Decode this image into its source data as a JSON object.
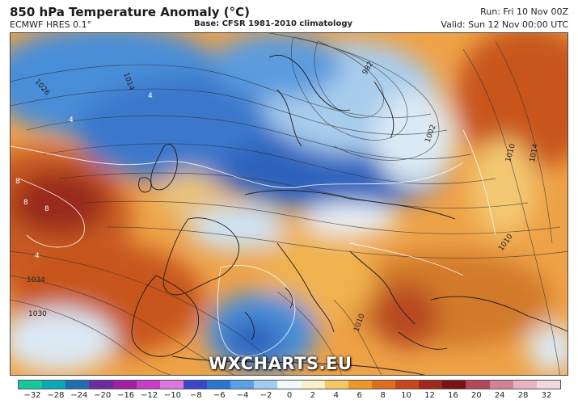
{
  "header": {
    "title": "850 hPa Temperature Anomaly (°C)",
    "model": "ECMWF HRES 0.1°",
    "base": "Base: CFSR 1981-2010 climatology",
    "run": "Run: Fri 10 Nov 00Z",
    "valid": "Valid: Sun 12 Nov 00:00 UTC"
  },
  "watermark": "WXCHARTS.EU",
  "isobar_labels": [
    "1026",
    "1014",
    "982",
    "1002",
    "1010",
    "1014",
    "1034",
    "1030",
    "1010",
    "1010"
  ],
  "anomaly_labels": [
    "8",
    "8",
    "8",
    "4",
    "4",
    "4"
  ],
  "colorbar": {
    "ticks": [
      "−32",
      "−28",
      "−24",
      "−20",
      "−16",
      "−12",
      "−10",
      "−8",
      "−6",
      "−4",
      "−2",
      "0",
      "2",
      "4",
      "6",
      "8",
      "10",
      "12",
      "16",
      "20",
      "24",
      "28",
      "32"
    ],
    "colors": [
      "#14c8a0",
      "#0aa8b4",
      "#1e6eb4",
      "#6a2ca0",
      "#a01ea0",
      "#c83cc8",
      "#dc78dc",
      "#3c46c8",
      "#2878d2",
      "#5aa0e6",
      "#a0ccf0",
      "#f0f8fa",
      "#faf0c8",
      "#f5c864",
      "#eb9628",
      "#dc6e1e",
      "#c8461e",
      "#a0281e",
      "#781414",
      "#b4465a",
      "#d28296",
      "#e6b4c3",
      "#f2d7dc"
    ]
  }
}
